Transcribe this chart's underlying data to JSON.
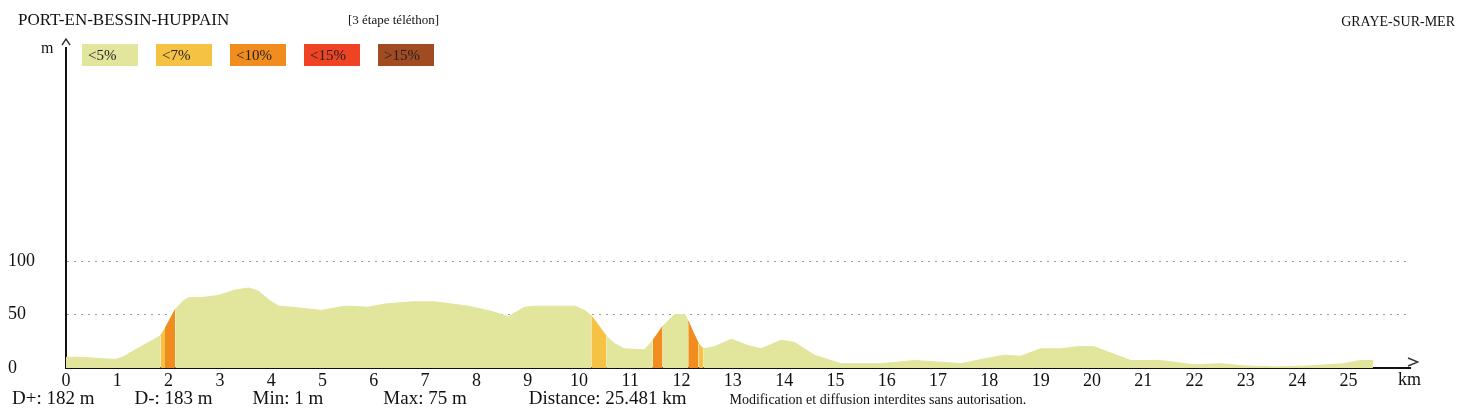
{
  "chart_data": {
    "type": "area",
    "title": "PORT-EN-BESSIN-HUPPAIN",
    "subtitle": "[3 étape téléthon]",
    "xlabel": "km",
    "ylabel": "m",
    "annotations": [
      "GRAYE-SUR-MER",
      "D+: 182 m",
      "D-: 183 m",
      "Min: 1 m",
      "Max: 75 m",
      "Distance: 25.481 km",
      "Modification et diffusion interdites sans autorisation."
    ],
    "x": [
      0,
      0.3,
      0.6,
      0.96,
      1.1,
      1.35,
      1.61,
      1.84,
      1.88,
      1.93,
      2.03,
      2.13,
      2.29,
      2.4,
      2.65,
      2.97,
      3.29,
      3.56,
      3.75,
      3.95,
      4.14,
      4.4,
      4.98,
      5.44,
      5.89,
      6.22,
      6.74,
      7.19,
      7.84,
      8.3,
      8.62,
      8.94,
      9.16,
      9.92,
      10.11,
      10.24,
      10.38,
      10.53,
      10.69,
      10.88,
      11.28,
      11.44,
      11.53,
      11.63,
      11.86,
      12.06,
      12.13,
      12.23,
      12.33,
      12.38,
      12.43,
      12.64,
      12.97,
      13.29,
      13.55,
      13.94,
      14.2,
      14.59,
      15.11,
      15.56,
      15.89,
      16.54,
      17.19,
      17.45,
      17.84,
      18.29,
      18.61,
      19,
      19.39,
      19.72,
      20.04,
      20.37,
      20.76,
      21.34,
      21.99,
      22.51,
      22.96,
      23.6,
      24.26,
      24.58,
      24.9,
      25.23,
      25.48
    ],
    "series": [
      {
        "name": "<5%",
        "color": "#e2e59c",
        "values": [
          10,
          10,
          9,
          8,
          10,
          17,
          24,
          30,
          null,
          null,
          null,
          55,
          63,
          66,
          66,
          68,
          73,
          75,
          72,
          64,
          58,
          57,
          54,
          58,
          57,
          60,
          62,
          62,
          58,
          53,
          48,
          57,
          58,
          58,
          54,
          49,
          null,
          30,
          23,
          18,
          17,
          26,
          null,
          39,
          50,
          50,
          44,
          null,
          null,
          null,
          18,
          20,
          27,
          21,
          18,
          26,
          24,
          12,
          4,
          4,
          4,
          7,
          5,
          4,
          8,
          12,
          11,
          18,
          18,
          20,
          20,
          14,
          7,
          7,
          3,
          4,
          2,
          1,
          2,
          3,
          4,
          7,
          7
        ]
      },
      {
        "name": "<7%",
        "color": "#f5c243",
        "values": [
          null,
          null,
          null,
          null,
          null,
          null,
          null,
          30,
          33,
          37,
          null,
          null,
          null,
          null,
          null,
          null,
          null,
          null,
          null,
          null,
          null,
          null,
          null,
          null,
          null,
          null,
          null,
          null,
          null,
          null,
          null,
          null,
          null,
          null,
          null,
          49,
          40,
          30,
          null,
          null,
          null,
          null,
          null,
          null,
          null,
          null,
          null,
          null,
          23,
          20,
          18,
          null,
          null,
          null,
          null,
          null,
          null,
          null,
          null,
          null,
          null,
          null,
          null,
          null,
          null,
          null,
          null,
          null,
          null,
          null,
          null,
          null,
          null,
          null,
          null,
          null,
          null,
          null,
          null,
          null,
          null,
          null,
          null
        ]
      },
      {
        "name": "<10%",
        "color": "#f08d1e",
        "values": [
          null,
          null,
          null,
          null,
          null,
          null,
          null,
          null,
          null,
          37,
          46,
          55,
          null,
          null,
          null,
          null,
          null,
          null,
          null,
          null,
          null,
          null,
          null,
          null,
          null,
          null,
          null,
          null,
          null,
          null,
          null,
          null,
          null,
          null,
          null,
          null,
          null,
          null,
          null,
          null,
          null,
          26,
          32,
          39,
          null,
          null,
          44,
          33,
          23,
          null,
          null,
          null,
          null,
          null,
          null,
          null,
          null,
          null,
          null,
          null,
          null,
          null,
          null,
          null,
          null,
          null,
          null,
          null,
          null,
          null,
          null,
          null,
          null,
          null,
          null,
          null,
          null,
          null,
          null,
          null,
          null,
          null,
          null
        ]
      },
      {
        "name": "<15%",
        "color": "#ee4424",
        "values": [
          null,
          null,
          null,
          null,
          null,
          null,
          null,
          null,
          null,
          null,
          null,
          null,
          null,
          null,
          null,
          null,
          null,
          null,
          null,
          null,
          null,
          null,
          null,
          null,
          null,
          null,
          null,
          null,
          null,
          null,
          null,
          null,
          null,
          null,
          null,
          null,
          null,
          null,
          null,
          null,
          null,
          null,
          null,
          null,
          null,
          null,
          null,
          null,
          null,
          null,
          null,
          null,
          null,
          null,
          null,
          null,
          null,
          null,
          null,
          null,
          null,
          null,
          null,
          null,
          null,
          null,
          null,
          null,
          null,
          null,
          null,
          null,
          null,
          null,
          null,
          null,
          null,
          null,
          null,
          null,
          null,
          null,
          null
        ]
      },
      {
        "name": ">15%",
        "color": "#a14b22",
        "values": [
          null,
          null,
          null,
          null,
          null,
          null,
          null,
          null,
          null,
          null,
          null,
          null,
          null,
          null,
          null,
          null,
          null,
          null,
          null,
          null,
          null,
          null,
          null,
          null,
          null,
          null,
          null,
          null,
          null,
          null,
          null,
          null,
          null,
          null,
          null,
          null,
          null,
          null,
          null,
          null,
          null,
          null,
          null,
          null,
          null,
          null,
          null,
          null,
          null,
          null,
          null,
          null,
          null,
          null,
          null,
          null,
          null,
          null,
          null,
          null,
          null,
          null,
          null,
          null,
          null,
          null,
          null,
          null,
          null,
          null,
          null,
          null,
          null,
          null,
          null,
          null,
          null,
          null,
          null,
          null,
          null,
          null,
          null
        ]
      }
    ],
    "xlim": [
      0,
      26.2
    ],
    "xticks": [
      0,
      1,
      2,
      3,
      4,
      5,
      6,
      7,
      8,
      9,
      10,
      11,
      12,
      13,
      14,
      15,
      16,
      17,
      18,
      19,
      20,
      21,
      22,
      23,
      24,
      25
    ],
    "ylim": [
      0,
      300
    ],
    "yticks": [
      0,
      50,
      100
    ],
    "grid": "y",
    "legend": "top left"
  }
}
